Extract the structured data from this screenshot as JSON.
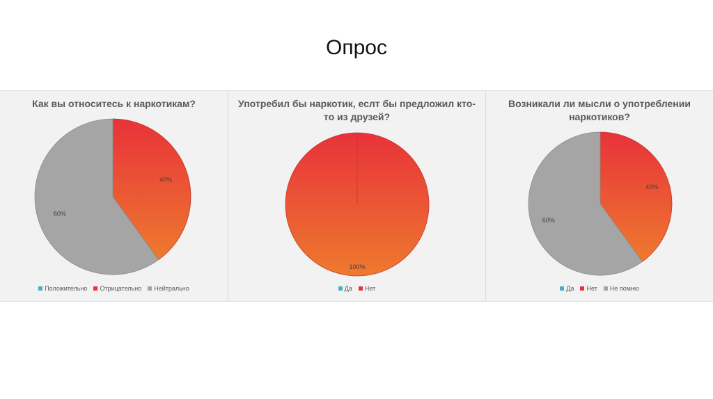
{
  "slide": {
    "title": "Опрос"
  },
  "colors": {
    "positive": "#4bacc6",
    "red_top": "#e8323a",
    "red_bottom": "#ee7a2e",
    "gray": "#a5a5a5",
    "panel_bg": "#f2f2f2"
  },
  "chart_data": [
    {
      "type": "pie",
      "title": "Как вы относитесь к наркотикам?",
      "categories": [
        "Положительно",
        "Отрицательно",
        "Нейтрально"
      ],
      "values": [
        0,
        40,
        60
      ],
      "value_labels": [
        "",
        "40%",
        "60%"
      ],
      "legend_position": "bottom"
    },
    {
      "type": "pie",
      "title": "Употребил бы наркотик, еслт бы предложил кто-то из друзей?",
      "categories": [
        "Да",
        "Нет"
      ],
      "values": [
        0,
        100
      ],
      "value_labels": [
        "",
        "100%"
      ],
      "legend_position": "bottom"
    },
    {
      "type": "pie",
      "title": "Возникали ли мысли о употреблении наркотиков?",
      "categories": [
        "Да",
        "Нет",
        "Не помню"
      ],
      "values": [
        0,
        40,
        60
      ],
      "value_labels": [
        "",
        "40%",
        "60%"
      ],
      "legend_position": "bottom"
    }
  ]
}
